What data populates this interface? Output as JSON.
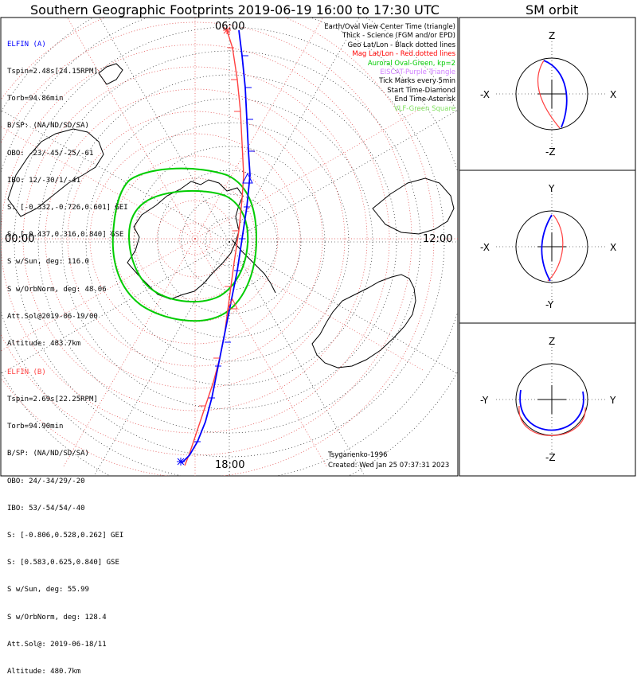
{
  "title": "Southern Geographic Footprints 2019-06-19 16:00 to 17:30 UTC",
  "sm_title": "SM orbit",
  "hour_labels": {
    "top": "06:00",
    "bottom": "18:00",
    "left": "00:00",
    "right": "12:00"
  },
  "panel_a": {
    "name": "ELFIN (A)",
    "color": "#0000ff",
    "lines": [
      "Tspin=2.48s[24.15RPM]",
      "Torb=94.86min",
      "B/SP: (NA/ND/SD/SA)",
      "OBO: -23/-45/-25/-61",
      "IBO: 12/-30/1/-41",
      "S: [-0.332,-0.726,0.601] GEI",
      "S: [-0.437,0.316,0.840] GSE",
      "S w/Sun, deg: 116.0",
      "S w/OrbNorm, deg: 48.06",
      "Att.Sol@2019-06-19/00",
      "Altitude: 483.7km"
    ]
  },
  "panel_b": {
    "name": "ELFIN (B)",
    "color": "#ff4040",
    "lines": [
      "Tspin=2.69s[22.25RPM]",
      "Torb=94.90min",
      "B/SP: (NA/ND/SD/SA)",
      "OBO: 24/-34/29/-20",
      "IBO: 53/-54/54/-40",
      "S: [-0.806,0.528,0.262] GEI",
      "S: [0.583,0.625,0.840] GSE",
      "S w/Sun, deg: 55.99",
      "S w/OrbNorm, deg: 128.4",
      "Att.Sol@: 2019-06-18/11",
      "Altitude: 480.7km"
    ]
  },
  "legend": [
    {
      "text": "Earth/Oval View Center Time (triangle)",
      "color": "#000000"
    },
    {
      "text": "Thick - Science (FGM and/or EPD)",
      "color": "#000000"
    },
    {
      "text": "Geo Lat/Lon - Black dotted lines",
      "color": "#000000"
    },
    {
      "text": "Mag Lat/Lon - Red dotted lines",
      "color": "#ff0000"
    },
    {
      "text": "Auroral Oval-Green, kp=2",
      "color": "#00cc00"
    },
    {
      "text": "EISCAT-Purple Triangle",
      "color": "#d080ff"
    },
    {
      "text": "Tick Marks every 5min",
      "color": "#000000"
    },
    {
      "text": "Start Time-Diamond",
      "color": "#000000"
    },
    {
      "text": "End Time-Asterisk",
      "color": "#000000"
    },
    {
      "text": "VLF-Green Square",
      "color": "#80e060"
    }
  ],
  "credit": {
    "author": "Tsyganenko-1996",
    "created": "Created: Wed Jan 25 07:37:31 2023"
  },
  "sm_panels": [
    {
      "axes": {
        "up": "Z",
        "down": "-Z",
        "left": "-X",
        "right": "X"
      }
    },
    {
      "axes": {
        "up": "Y",
        "down": "-Y",
        "left": "-X",
        "right": "X"
      }
    },
    {
      "axes": {
        "up": "Z",
        "down": "-Z",
        "left": "-Y",
        "right": "Y"
      }
    }
  ],
  "colors": {
    "elfin_a": "#0000ff",
    "elfin_b": "#ff4040",
    "oval": "#00cc00",
    "mag_grid": "#e04040",
    "geo_grid": "#000000"
  },
  "chart_data": {
    "type": "polar-map",
    "projection": "south polar geographic, MLT clock at rim",
    "time_range": [
      "2019-06-19 16:00",
      "2019-06-19 17:30"
    ],
    "series": [
      {
        "name": "ELFIN (A)",
        "color": "#0000ff",
        "points_local": [
          [
            0.09,
            -0.96
          ],
          [
            0.11,
            -0.8
          ],
          [
            0.12,
            -0.6
          ],
          [
            0.1,
            -0.4
          ],
          [
            0.05,
            -0.2
          ],
          [
            0.02,
            0.0
          ],
          [
            -0.02,
            0.2
          ],
          [
            -0.07,
            0.4
          ],
          [
            -0.12,
            0.6
          ],
          [
            -0.17,
            0.8
          ],
          [
            -0.23,
            0.98
          ]
        ]
      },
      {
        "name": "ELFIN (B)",
        "color": "#ff4040",
        "points_local": [
          [
            0.07,
            -0.98
          ],
          [
            0.09,
            -0.8
          ],
          [
            0.09,
            -0.6
          ],
          [
            0.07,
            -0.4
          ],
          [
            0.05,
            -0.2
          ],
          [
            0.02,
            0.0
          ],
          [
            -0.02,
            0.2
          ],
          [
            -0.06,
            0.4
          ],
          [
            -0.11,
            0.6
          ],
          [
            -0.15,
            0.8
          ],
          [
            -0.2,
            0.99
          ]
        ]
      }
    ]
  }
}
